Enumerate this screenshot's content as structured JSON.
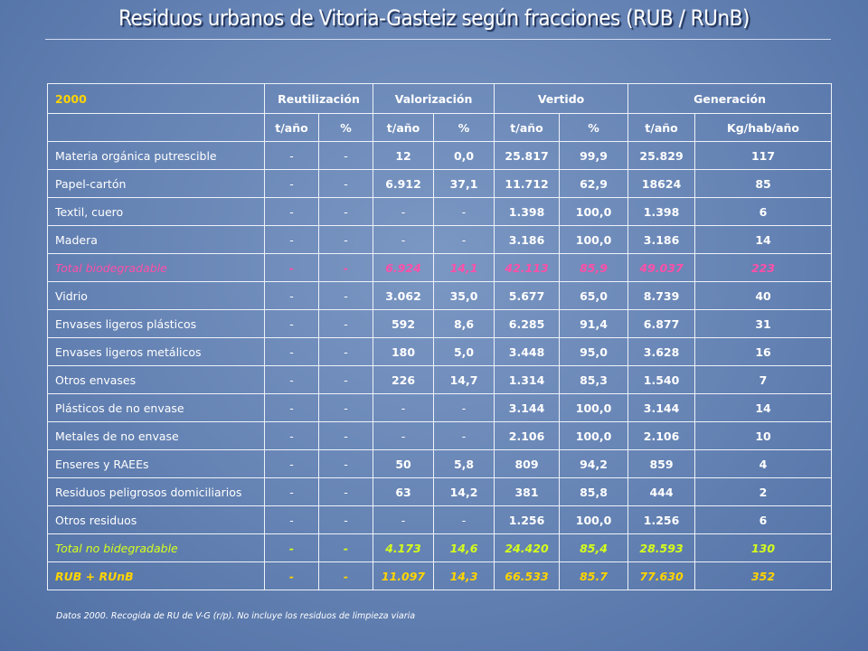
{
  "title": "Residuos urbanos de Vitoria-Gasteiz según fracciones (RUB / RUnB)",
  "table": {
    "year": "2000",
    "groups": [
      "Reutilización",
      "Valorización",
      "Vertido",
      "Generación"
    ],
    "units": [
      "t/año",
      "%",
      "t/año",
      "%",
      "t/año",
      "%",
      "t/año",
      "Kg/hab/año"
    ],
    "rows": [
      {
        "label": "Materia orgánica putrescible",
        "style": "normal",
        "cells": [
          "-",
          "-",
          "12",
          "0,0",
          "25.817",
          "99,9",
          "25.829",
          "117"
        ]
      },
      {
        "label": "Papel-cartón",
        "style": "normal",
        "cells": [
          "-",
          "-",
          "6.912",
          "37,1",
          "11.712",
          "62,9",
          "18624",
          "85"
        ]
      },
      {
        "label": "Textil, cuero",
        "style": "normal",
        "cells": [
          "-",
          "-",
          "-",
          "-",
          "1.398",
          "100,0",
          "1.398",
          "6"
        ]
      },
      {
        "label": "Madera",
        "style": "normal",
        "cells": [
          "-",
          "-",
          "-",
          "-",
          "3.186",
          "100,0",
          "3.186",
          "14"
        ]
      },
      {
        "label": "Total biodegradable",
        "style": "pink",
        "cells": [
          "-",
          "-",
          "6.924",
          "14,1",
          "42.113",
          "85,9",
          "49.037",
          "223"
        ]
      },
      {
        "label": "Vidrio",
        "style": "normal",
        "cells": [
          "-",
          "-",
          "3.062",
          "35,0",
          "5.677",
          "65,0",
          "8.739",
          "40"
        ]
      },
      {
        "label": "Envases ligeros plásticos",
        "style": "normal",
        "cells": [
          "-",
          "-",
          "592",
          "8,6",
          "6.285",
          "91,4",
          "6.877",
          "31"
        ]
      },
      {
        "label": "Envases ligeros metálicos",
        "style": "normal",
        "cells": [
          "-",
          "-",
          "180",
          "5,0",
          "3.448",
          "95,0",
          "3.628",
          "16"
        ]
      },
      {
        "label": "Otros envases",
        "style": "normal",
        "cells": [
          "-",
          "-",
          "226",
          "14,7",
          "1.314",
          "85,3",
          "1.540",
          "7"
        ]
      },
      {
        "label": "Plásticos de no envase",
        "style": "normal",
        "cells": [
          "-",
          "-",
          "-",
          "-",
          "3.144",
          "100,0",
          "3.144",
          "14"
        ]
      },
      {
        "label": "Metales de no envase",
        "style": "normal",
        "cells": [
          "-",
          "-",
          "-",
          "-",
          "2.106",
          "100,0",
          "2.106",
          "10"
        ]
      },
      {
        "label": "Enseres y RAEEs",
        "style": "normal",
        "cells": [
          "-",
          "-",
          "50",
          "5,8",
          "809",
          "94,2",
          "859",
          "4"
        ]
      },
      {
        "label": "Residuos peligrosos domiciliarios",
        "style": "normal",
        "cells": [
          "-",
          "-",
          "63",
          "14,2",
          "381",
          "85,8",
          "444",
          "2"
        ]
      },
      {
        "label": "Otros residuos",
        "style": "normal",
        "cells": [
          "-",
          "-",
          "-",
          "-",
          "1.256",
          "100,0",
          "1.256",
          "6"
        ]
      },
      {
        "label": "Total no bidegradable",
        "style": "green",
        "cells": [
          "-",
          "-",
          "4.173",
          "14,6",
          "24.420",
          "85,4",
          "28.593",
          "130"
        ]
      },
      {
        "label": "RUB + RUnB",
        "style": "yellow",
        "cells": [
          "-",
          "-",
          "11.097",
          "14,3",
          "66.533",
          "85.7",
          "77.630",
          "352"
        ]
      }
    ]
  },
  "footnote": "Datos 2000. Recogida de RU de V-G (r/p). No incluye los residuos de limpieza viaria",
  "colors": {
    "background": "#6482b3",
    "year_header": "#ffd400",
    "total_biodegradable": "#ff4fa8",
    "total_no_biodegradable": "#d6ff1a",
    "grand_total": "#ffd400"
  }
}
